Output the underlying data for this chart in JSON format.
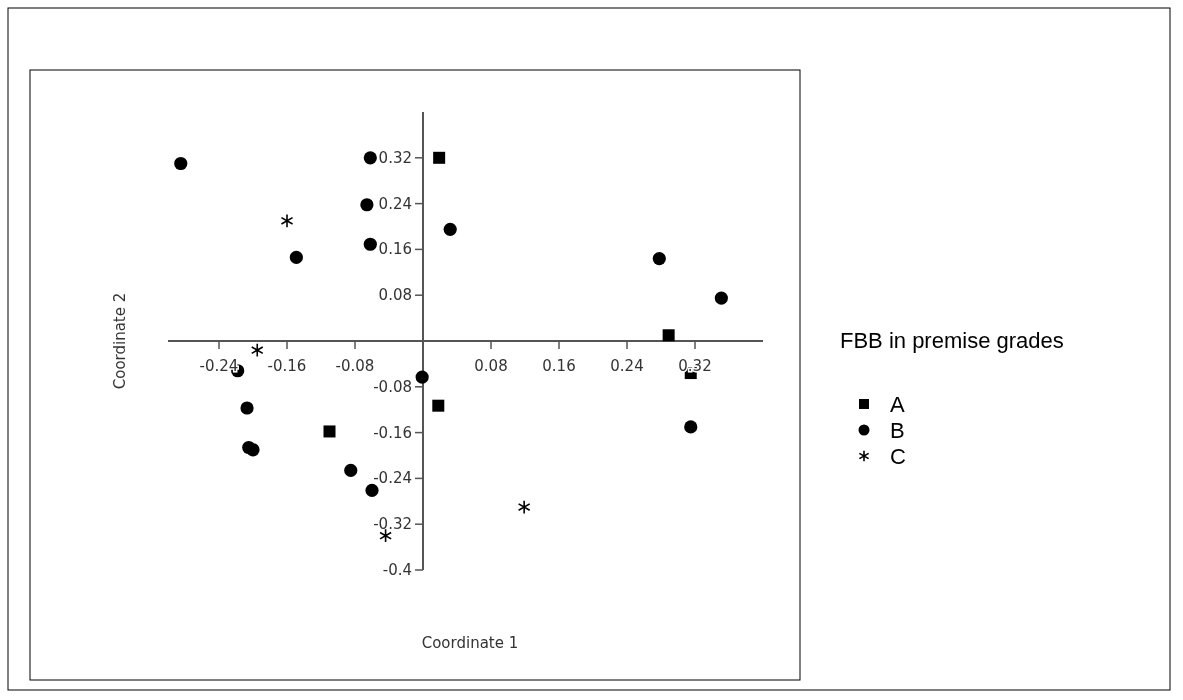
{
  "chart_data": {
    "type": "scatter",
    "xlabel": "Coordinate 1",
    "ylabel": "Coordinate 2",
    "legend_title": "FBB in premise grades",
    "legend": "right",
    "xlim": [
      -0.3,
      0.4
    ],
    "ylim": [
      -0.4,
      0.4
    ],
    "xticks": [
      -0.24,
      -0.16,
      -0.08,
      0.08,
      0.16,
      0.24,
      0.32
    ],
    "yticks": [
      -0.4,
      -0.32,
      -0.24,
      -0.16,
      -0.08,
      0.08,
      0.16,
      0.24,
      0.32
    ],
    "grid": false,
    "series": [
      {
        "name": "A",
        "color": "#000000",
        "marker": "square",
        "x": [
          0.019,
          0.289,
          0.315,
          0.018,
          -0.11
        ],
        "values": [
          0.32,
          0.01,
          -0.056,
          -0.113,
          -0.158
        ]
      },
      {
        "name": "B",
        "color": "#000000",
        "marker": "circle",
        "x": [
          -0.285,
          -0.062,
          -0.066,
          -0.062,
          0.032,
          -0.149,
          0.278,
          0.351,
          -0.218,
          -0.001,
          -0.207,
          -0.205,
          -0.2,
          -0.085,
          -0.06,
          0.315
        ],
        "values": [
          0.31,
          0.32,
          0.238,
          0.169,
          0.195,
          0.146,
          0.144,
          0.075,
          -0.052,
          -0.063,
          -0.117,
          -0.186,
          -0.19,
          -0.226,
          -0.261,
          -0.15
        ]
      },
      {
        "name": "C",
        "color": "#000000",
        "marker": "cross",
        "x": [
          -0.16,
          -0.195,
          0.119,
          -0.044
        ],
        "values": [
          0.21,
          -0.016,
          -0.29,
          -0.34
        ]
      }
    ]
  }
}
